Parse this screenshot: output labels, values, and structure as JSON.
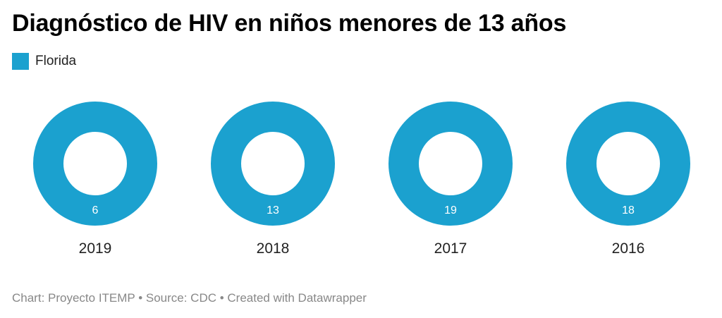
{
  "title": "Diagnóstico de HIV en niños menores de 13 años",
  "legend": [
    {
      "label": "Florida",
      "color": "#1ba1cf"
    }
  ],
  "chart_data": {
    "type": "pie",
    "variant": "donut",
    "title": "Diagnóstico de HIV en niños menores de 13 años",
    "series_name": "Florida",
    "color": "#1ba1cf",
    "charts": [
      {
        "category": "2019",
        "value": 6
      },
      {
        "category": "2018",
        "value": 13
      },
      {
        "category": "2017",
        "value": 19
      },
      {
        "category": "2016",
        "value": 18
      }
    ]
  },
  "footer": {
    "text": "Chart: Proyecto ITEMP • Source: CDC • Created with Datawrapper"
  }
}
